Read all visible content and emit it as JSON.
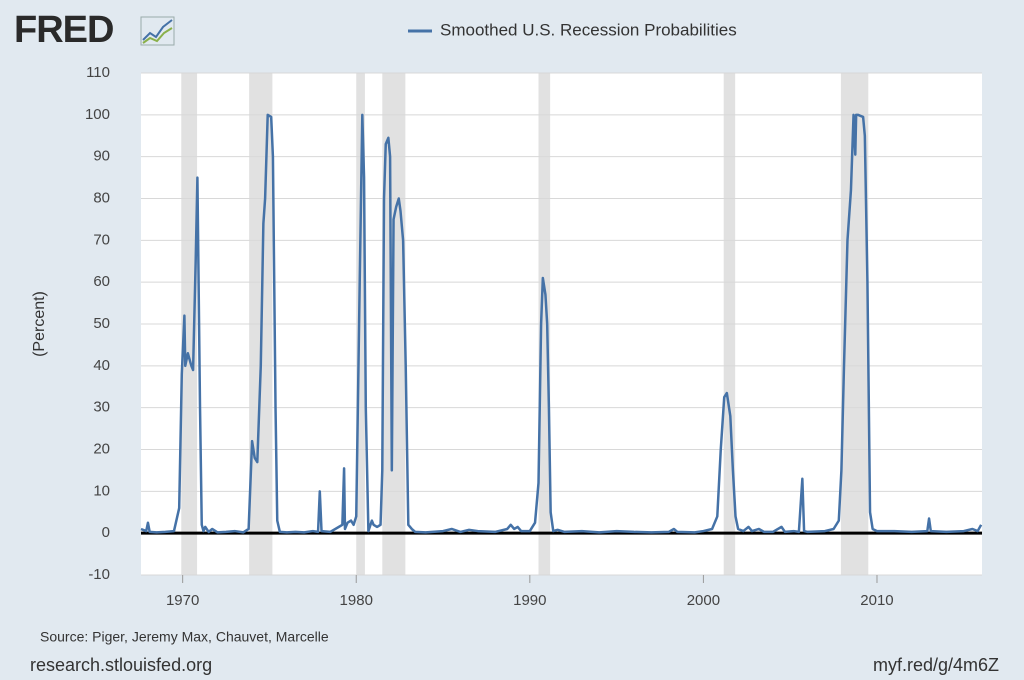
{
  "logo": "FRED",
  "chart_data": {
    "type": "line",
    "ylabel": "(Percent)",
    "series": [
      {
        "name": "Smoothed U.S. Recession Probabilities",
        "color": "#4572a7",
        "x": [
          1967.6,
          1967.9,
          1968.0,
          1968.1,
          1968.5,
          1969.0,
          1969.5,
          1969.8,
          1969.95,
          1970.1,
          1970.15,
          1970.3,
          1970.5,
          1970.6,
          1970.75,
          1970.85,
          1971.0,
          1971.1,
          1971.2,
          1971.3,
          1971.5,
          1971.7,
          1972.0,
          1972.5,
          1973.0,
          1973.5,
          1973.8,
          1974.0,
          1974.15,
          1974.3,
          1974.5,
          1974.65,
          1974.75,
          1974.9,
          1975.1,
          1975.2,
          1975.35,
          1975.45,
          1975.6,
          1976.0,
          1976.5,
          1977.0,
          1977.5,
          1977.8,
          1977.9,
          1978.0,
          1978.5,
          1979.0,
          1979.2,
          1979.3,
          1979.35,
          1979.5,
          1979.7,
          1979.85,
          1980.0,
          1980.2,
          1980.35,
          1980.45,
          1980.55,
          1980.7,
          1980.9,
          1981.0,
          1981.2,
          1981.4,
          1981.5,
          1981.6,
          1981.7,
          1981.85,
          1981.95,
          1982.05,
          1982.15,
          1982.3,
          1982.45,
          1982.55,
          1982.7,
          1982.85,
          1983.0,
          1983.2,
          1983.4,
          1984.0,
          1985.0,
          1985.5,
          1986.0,
          1986.5,
          1987.0,
          1988.0,
          1988.7,
          1988.9,
          1989.1,
          1989.3,
          1989.5,
          1990.0,
          1990.3,
          1990.5,
          1990.65,
          1990.75,
          1990.9,
          1991.0,
          1991.1,
          1991.2,
          1991.35,
          1991.6,
          1992.0,
          1993.0,
          1994.0,
          1995.0,
          1996.0,
          1997.0,
          1998.0,
          1998.3,
          1998.5,
          1999.5,
          2000.0,
          2000.5,
          2000.8,
          2001.0,
          2001.2,
          2001.35,
          2001.55,
          2001.7,
          2001.85,
          2002.0,
          2002.3,
          2002.6,
          2002.8,
          2003.2,
          2003.5,
          2004.0,
          2004.5,
          2004.7,
          2005.2,
          2005.5,
          2005.7,
          2005.8,
          2006.0,
          2007.0,
          2007.5,
          2007.8,
          2007.95,
          2008.1,
          2008.3,
          2008.5,
          2008.65,
          2008.75,
          2008.8,
          2008.9,
          2009.2,
          2009.3,
          2009.45,
          2009.6,
          2009.75,
          2010.0,
          2011.0,
          2012.0,
          2012.9,
          2013.0,
          2013.1,
          2014.0,
          2015.0,
          2015.5,
          2015.8,
          2016.0
        ],
        "values": [
          1,
          0.5,
          2.5,
          0.3,
          0.2,
          0.3,
          0.5,
          6,
          38,
          52,
          40,
          43,
          40,
          39,
          65,
          85,
          30,
          2,
          0.5,
          1.5,
          0.3,
          1,
          0.2,
          0.3,
          0.5,
          0.2,
          1,
          22,
          18,
          17,
          40,
          74,
          80,
          100,
          99.5,
          90,
          30,
          3,
          0.3,
          0.2,
          0.3,
          0.2,
          0.5,
          0.3,
          10,
          0.5,
          0.3,
          1.5,
          2,
          15.5,
          1,
          2.5,
          3,
          2,
          4,
          60,
          100,
          85,
          30,
          0.5,
          3,
          2,
          1.5,
          2,
          15,
          80,
          93,
          94.5,
          90,
          15,
          75,
          78,
          80,
          77,
          70,
          40,
          2,
          1,
          0.3,
          0.2,
          0.5,
          1,
          0.3,
          0.8,
          0.5,
          0.3,
          1,
          2,
          1,
          1.5,
          0.5,
          0.5,
          2.5,
          12,
          50,
          61,
          57,
          50,
          30,
          5,
          0.5,
          0.8,
          0.3,
          0.5,
          0.2,
          0.5,
          0.3,
          0.2,
          0.3,
          1,
          0.3,
          0.2,
          0.5,
          1,
          4,
          20,
          32.5,
          33.5,
          28,
          15,
          4,
          1,
          0.5,
          1.5,
          0.5,
          1,
          0.3,
          0.3,
          1.5,
          0.3,
          0.5,
          0.3,
          13,
          0.5,
          0.3,
          0.5,
          1,
          3,
          15,
          40,
          70,
          82,
          100,
          90.5,
          100,
          100,
          99.5,
          95,
          60,
          5,
          1,
          0.5,
          0.5,
          0.3,
          0.5,
          3.5,
          0.5,
          0.3,
          0.5,
          1,
          0.5,
          2
        ]
      }
    ],
    "recessions": [
      [
        1969.92,
        1970.83
      ],
      [
        1973.83,
        1975.17
      ],
      [
        1980.0,
        1980.5
      ],
      [
        1981.5,
        1982.83
      ],
      [
        1990.5,
        1991.17
      ],
      [
        2001.17,
        2001.83
      ],
      [
        2007.92,
        2009.5
      ]
    ],
    "xlim": [
      1967.6,
      2016.05
    ],
    "xticks": [
      1970,
      1980,
      1990,
      2000,
      2010
    ],
    "ylim": [
      -10,
      110
    ],
    "yticks": [
      -10,
      0,
      10,
      20,
      30,
      40,
      50,
      60,
      70,
      80,
      90,
      100,
      110
    ],
    "grid": true
  },
  "footer": {
    "source": "Source: Piger, Jeremy Max, Chauvet, Marcelle",
    "site": "research.stlouisfed.org",
    "link": "myf.red/g/4m6Z"
  }
}
